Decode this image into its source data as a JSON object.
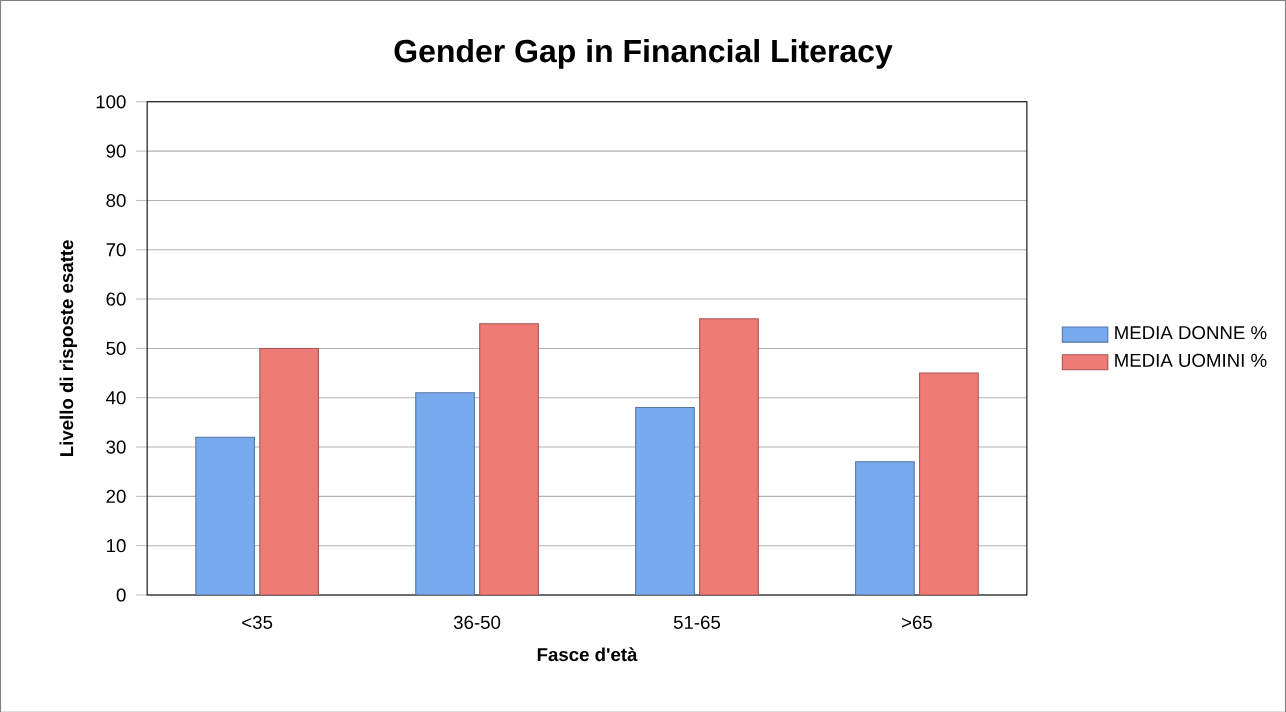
{
  "chart_data": {
    "type": "bar",
    "title": "Gender Gap in Financial Literacy",
    "xlabel": "Fasce d'età",
    "ylabel": "Livello di  risposte esatte",
    "categories": [
      "<35",
      "36-50",
      "51-65",
      ">65"
    ],
    "series": [
      {
        "name": "MEDIA DONNE %",
        "color": "#78aaee",
        "values": [
          32,
          41,
          38,
          27
        ]
      },
      {
        "name": "MEDIA UOMINI %",
        "color": "#ee7b76",
        "values": [
          50,
          55,
          56,
          45
        ]
      }
    ],
    "ylim": [
      0,
      100
    ],
    "yticks": [
      0,
      10,
      20,
      30,
      40,
      50,
      60,
      70,
      80,
      90,
      100
    ],
    "grid": "y",
    "legend": "right"
  }
}
